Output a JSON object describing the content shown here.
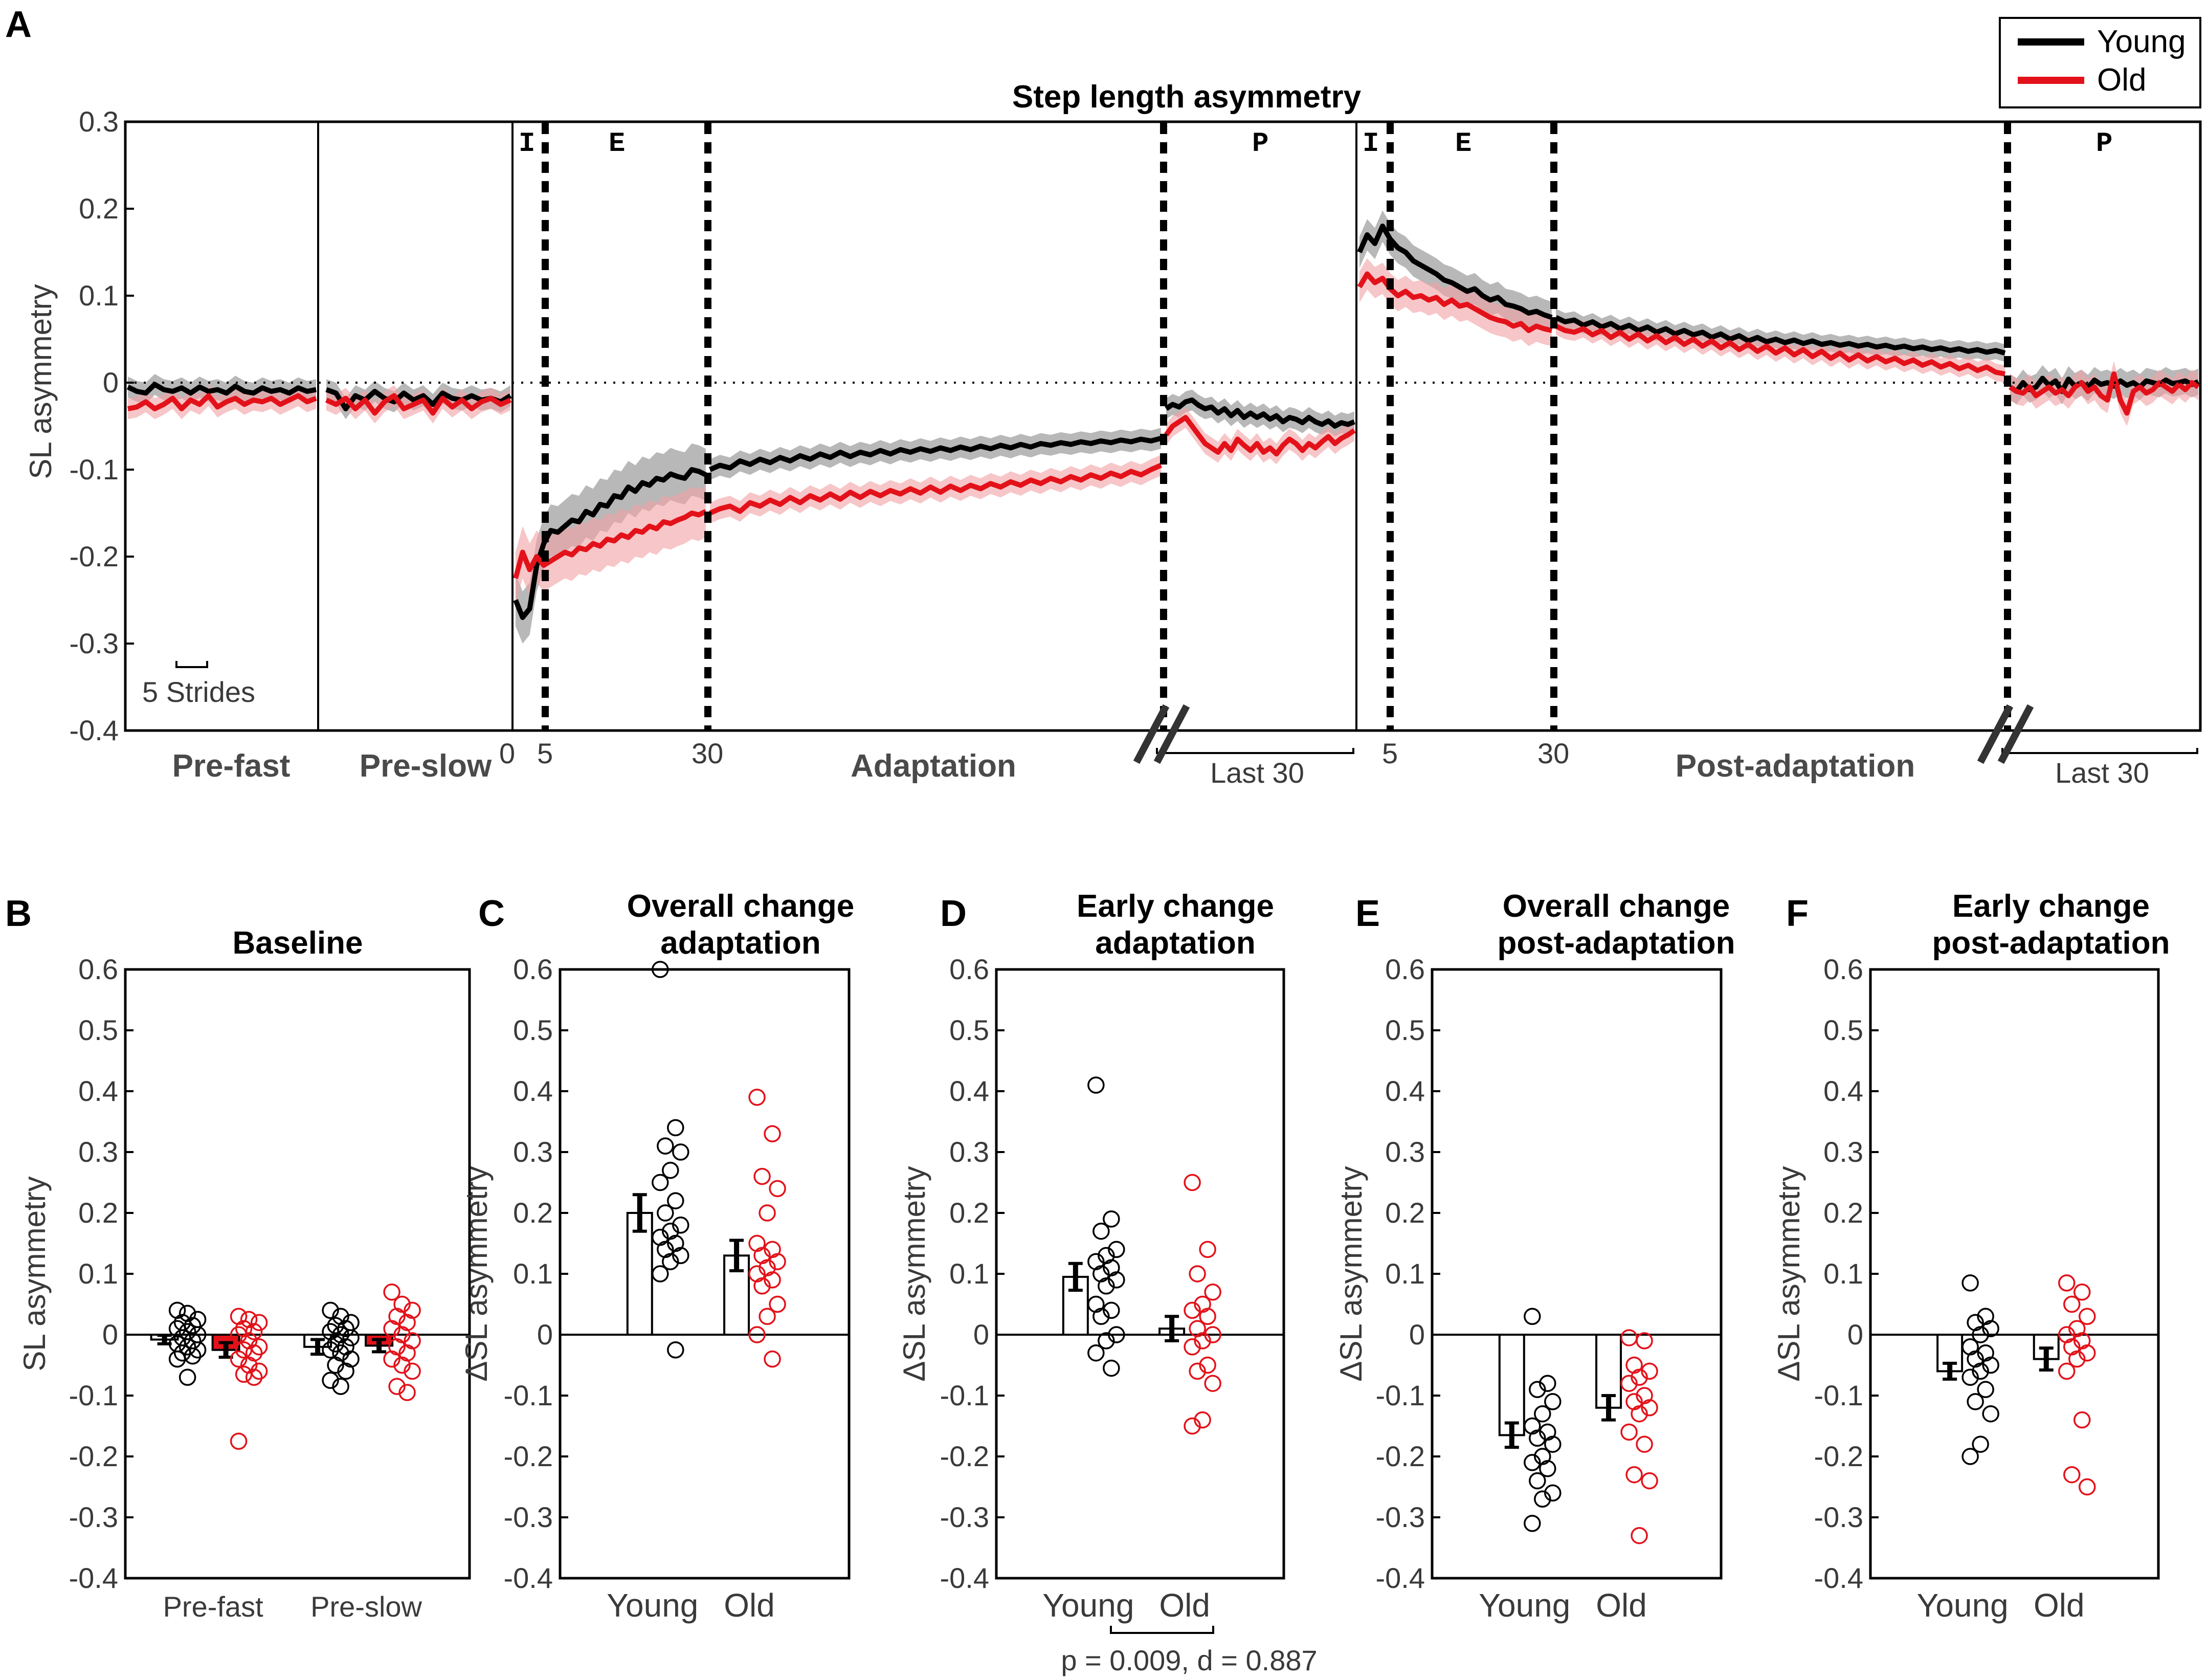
{
  "colors": {
    "young": "#000000",
    "old": "#e3121a",
    "young_band": "#9a9a9a",
    "old_band": "#f2a0a3"
  },
  "panel_letters": {
    "a": "A",
    "b": "B",
    "c": "C",
    "d": "D",
    "e": "E",
    "f": "F"
  },
  "legend": {
    "young": "Young",
    "old": "Old"
  },
  "chart_data": [
    {
      "panel": "A",
      "type": "line",
      "title": "Step length asymmetry",
      "ylabel": "SL asymmetry",
      "ylim": [
        -0.4,
        0.3
      ],
      "yticks": [
        "0.3",
        "0.2",
        "0.1",
        "0",
        "-0.1",
        "-0.2",
        "-0.3",
        "-0.4"
      ],
      "segments": [
        "Pre-fast",
        "Pre-slow",
        "Adaptation",
        "Post-adaptation"
      ],
      "phase_labels": {
        "initial": "I",
        "early": "E",
        "plateau": "P"
      },
      "xtick_labels": {
        "zero": "0",
        "five": "5",
        "thirty": "30",
        "last30": "Last 30"
      },
      "scale_bar": "5 Strides",
      "series": [
        {
          "name": "Young",
          "pre_fast": [
            -0.005,
            -0.01,
            -0.012,
            -0.002,
            -0.008,
            -0.01,
            -0.006,
            -0.012,
            -0.005,
            -0.01,
            -0.008,
            -0.012,
            -0.004,
            -0.01,
            -0.012,
            -0.006,
            -0.01,
            -0.008,
            -0.012,
            -0.006,
            -0.01,
            -0.008
          ],
          "pre_slow": [
            -0.008,
            -0.012,
            -0.03,
            -0.015,
            -0.02,
            -0.01,
            -0.018,
            -0.022,
            -0.012,
            -0.02,
            -0.015,
            -0.025,
            -0.012,
            -0.018,
            -0.02,
            -0.015,
            -0.02,
            -0.018,
            -0.022,
            -0.015
          ],
          "adaptation_early": [
            -0.25,
            -0.27,
            -0.26,
            -0.21,
            -0.185,
            -0.17,
            -0.172,
            -0.165,
            -0.158,
            -0.16,
            -0.148,
            -0.152,
            -0.14,
            -0.142,
            -0.13,
            -0.132,
            -0.12,
            -0.125,
            -0.115,
            -0.118,
            -0.11,
            -0.112,
            -0.105,
            -0.108,
            -0.11,
            -0.1,
            -0.102,
            -0.106
          ],
          "adaptation_late": [
            -0.1,
            -0.095,
            -0.098,
            -0.09,
            -0.094,
            -0.088,
            -0.092,
            -0.086,
            -0.09,
            -0.084,
            -0.088,
            -0.082,
            -0.086,
            -0.08,
            -0.085,
            -0.08,
            -0.083,
            -0.078,
            -0.082,
            -0.077,
            -0.08,
            -0.076,
            -0.079,
            -0.075,
            -0.078,
            -0.074,
            -0.077,
            -0.073,
            -0.076,
            -0.072,
            -0.075,
            -0.071,
            -0.074,
            -0.07,
            -0.072,
            -0.069,
            -0.071,
            -0.068,
            -0.07,
            -0.067,
            -0.069,
            -0.066,
            -0.068,
            -0.065,
            -0.067,
            -0.064
          ],
          "adaptation_last30": [
            -0.03,
            -0.025,
            -0.028,
            -0.022,
            -0.02,
            -0.026,
            -0.03,
            -0.028,
            -0.035,
            -0.03,
            -0.038,
            -0.032,
            -0.04,
            -0.035,
            -0.04,
            -0.036,
            -0.042,
            -0.038,
            -0.045,
            -0.04,
            -0.042,
            -0.046,
            -0.04,
            -0.045,
            -0.048,
            -0.044,
            -0.05,
            -0.046,
            -0.048,
            -0.045
          ],
          "post_early": [
            0.15,
            0.17,
            0.16,
            0.18,
            0.165,
            0.155,
            0.15,
            0.14,
            0.135,
            0.13,
            0.125,
            0.118,
            0.115,
            0.11,
            0.105,
            0.108,
            0.1,
            0.095,
            0.098,
            0.09,
            0.088,
            0.085,
            0.08,
            0.082,
            0.078,
            0.075
          ],
          "post_late": [
            0.075,
            0.07,
            0.072,
            0.066,
            0.07,
            0.064,
            0.068,
            0.062,
            0.066,
            0.06,
            0.064,
            0.058,
            0.062,
            0.056,
            0.06,
            0.055,
            0.058,
            0.052,
            0.056,
            0.05,
            0.054,
            0.048,
            0.052,
            0.047,
            0.05,
            0.046,
            0.049,
            0.045,
            0.048,
            0.044,
            0.046,
            0.043,
            0.045,
            0.042,
            0.044,
            0.041,
            0.043,
            0.04,
            0.042,
            0.039,
            0.041,
            0.038,
            0.04,
            0.037,
            0.039,
            0.036,
            0.038,
            0.035,
            0.037,
            0.034
          ],
          "post_last30": [
            -0.005,
            -0.01,
            0.0,
            -0.008,
            -0.005,
            0.005,
            -0.003,
            0.002,
            -0.01,
            0.004,
            -0.004,
            0.0,
            -0.006,
            0.003,
            -0.002,
            0.0,
            -0.004,
            0.002,
            -0.003,
            0.0,
            -0.005,
            0.002,
            0.0,
            -0.002,
            0.003,
            -0.001,
            0.0,
            0.002,
            -0.002,
            0.001
          ]
        },
        {
          "name": "Old",
          "pre_fast": [
            -0.03,
            -0.028,
            -0.022,
            -0.03,
            -0.025,
            -0.018,
            -0.03,
            -0.02,
            -0.025,
            -0.015,
            -0.028,
            -0.022,
            -0.018,
            -0.025,
            -0.02,
            -0.022,
            -0.018,
            -0.025,
            -0.02,
            -0.015,
            -0.022,
            -0.018
          ],
          "pre_slow": [
            -0.02,
            -0.025,
            -0.018,
            -0.03,
            -0.02,
            -0.035,
            -0.022,
            -0.015,
            -0.03,
            -0.025,
            -0.02,
            -0.035,
            -0.018,
            -0.028,
            -0.02,
            -0.03,
            -0.022,
            -0.018,
            -0.025,
            -0.02
          ],
          "adaptation_early": [
            -0.225,
            -0.195,
            -0.215,
            -0.2,
            -0.21,
            -0.205,
            -0.2,
            -0.195,
            -0.198,
            -0.19,
            -0.192,
            -0.185,
            -0.188,
            -0.18,
            -0.182,
            -0.175,
            -0.178,
            -0.17,
            -0.172,
            -0.165,
            -0.168,
            -0.16,
            -0.162,
            -0.158,
            -0.155,
            -0.15,
            -0.152,
            -0.148
          ],
          "adaptation_late": [
            -0.15,
            -0.145,
            -0.142,
            -0.148,
            -0.138,
            -0.142,
            -0.135,
            -0.14,
            -0.132,
            -0.138,
            -0.13,
            -0.135,
            -0.128,
            -0.134,
            -0.126,
            -0.132,
            -0.125,
            -0.13,
            -0.124,
            -0.128,
            -0.122,
            -0.127,
            -0.12,
            -0.126,
            -0.119,
            -0.124,
            -0.118,
            -0.122,
            -0.116,
            -0.12,
            -0.114,
            -0.118,
            -0.112,
            -0.116,
            -0.11,
            -0.114,
            -0.108,
            -0.112,
            -0.106,
            -0.11,
            -0.104,
            -0.108,
            -0.102,
            -0.106,
            -0.1,
            -0.095
          ],
          "adaptation_last30": [
            -0.06,
            -0.05,
            -0.045,
            -0.04,
            -0.05,
            -0.06,
            -0.07,
            -0.075,
            -0.08,
            -0.07,
            -0.078,
            -0.065,
            -0.072,
            -0.078,
            -0.07,
            -0.08,
            -0.075,
            -0.082,
            -0.072,
            -0.065,
            -0.07,
            -0.078,
            -0.07,
            -0.075,
            -0.068,
            -0.062,
            -0.07,
            -0.064,
            -0.06,
            -0.055
          ],
          "post_early": [
            0.11,
            0.125,
            0.115,
            0.12,
            0.108,
            0.1,
            0.105,
            0.098,
            0.1,
            0.095,
            0.098,
            0.09,
            0.095,
            0.088,
            0.09,
            0.085,
            0.08,
            0.075,
            0.072,
            0.07,
            0.065,
            0.068,
            0.06,
            0.065,
            0.062,
            0.06
          ],
          "post_late": [
            0.065,
            0.06,
            0.058,
            0.062,
            0.055,
            0.06,
            0.052,
            0.058,
            0.05,
            0.056,
            0.048,
            0.054,
            0.046,
            0.052,
            0.044,
            0.05,
            0.042,
            0.048,
            0.04,
            0.046,
            0.038,
            0.044,
            0.036,
            0.042,
            0.034,
            0.04,
            0.032,
            0.038,
            0.03,
            0.036,
            0.028,
            0.034,
            0.026,
            0.032,
            0.025,
            0.03,
            0.024,
            0.028,
            0.022,
            0.026,
            0.02,
            0.024,
            0.018,
            0.022,
            0.016,
            0.02,
            0.014,
            0.018,
            0.012,
            0.01
          ],
          "post_last30": [
            -0.005,
            -0.01,
            -0.012,
            -0.005,
            -0.015,
            -0.01,
            -0.005,
            -0.012,
            -0.008,
            -0.015,
            -0.005,
            0.0,
            -0.01,
            -0.005,
            -0.015,
            -0.02,
            0.01,
            -0.02,
            -0.035,
            -0.01,
            -0.005,
            -0.012,
            -0.008,
            0.0,
            -0.005,
            -0.01,
            -0.002,
            -0.008,
            0.0,
            -0.005
          ]
        }
      ]
    },
    {
      "panel": "B",
      "type": "bar",
      "title_lines": [
        "Baseline"
      ],
      "ylabel": "SL asymmetry",
      "ylim": [
        -0.4,
        0.6
      ],
      "yticks": [
        "0.6",
        "0.5",
        "0.4",
        "0.3",
        "0.2",
        "0.1",
        "0",
        "-0.1",
        "-0.2",
        "-0.3",
        "-0.4"
      ],
      "categories": [
        "Pre-fast",
        "Pre-slow"
      ],
      "series": [
        {
          "name": "Young",
          "means": [
            -0.008,
            -0.02
          ],
          "sem": [
            0.007,
            0.012
          ],
          "points": [
            [
              0.04,
              0.035,
              0.025,
              0.02,
              0.015,
              0.01,
              0.005,
              0.0,
              -0.005,
              -0.01,
              -0.015,
              -0.02,
              -0.025,
              -0.03,
              -0.035,
              -0.04,
              -0.07
            ],
            [
              0.04,
              0.03,
              0.02,
              0.015,
              0.01,
              0.005,
              0.0,
              -0.005,
              -0.015,
              -0.02,
              -0.025,
              -0.03,
              -0.04,
              -0.05,
              -0.06,
              -0.075,
              -0.085
            ]
          ]
        },
        {
          "name": "Old",
          "means": [
            -0.025,
            -0.018
          ],
          "sem": [
            0.012,
            0.01
          ],
          "points": [
            [
              0.03,
              0.025,
              0.02,
              0.01,
              0.005,
              0.0,
              -0.01,
              -0.02,
              -0.025,
              -0.03,
              -0.04,
              -0.05,
              -0.06,
              -0.065,
              -0.07,
              -0.175
            ],
            [
              0.07,
              0.05,
              0.04,
              0.03,
              0.02,
              0.01,
              0.0,
              -0.01,
              -0.02,
              -0.03,
              -0.04,
              -0.05,
              -0.06,
              -0.085,
              -0.095
            ]
          ]
        }
      ]
    },
    {
      "panel": "C",
      "type": "bar",
      "title_lines": [
        "Overall change",
        "adaptation"
      ],
      "ylabel": "ΔSL asymmetry",
      "ylim": [
        -0.4,
        0.6
      ],
      "yticks": [
        "0.6",
        "0.5",
        "0.4",
        "0.3",
        "0.2",
        "0.1",
        "0",
        "-0.1",
        "-0.2",
        "-0.3",
        "-0.4"
      ],
      "categories": [
        "Young",
        "Old"
      ],
      "means": [
        0.2,
        0.13
      ],
      "sem": [
        0.03,
        0.025
      ],
      "points": [
        [
          0.6,
          0.34,
          0.31,
          0.3,
          0.27,
          0.25,
          0.22,
          0.2,
          0.18,
          0.17,
          0.16,
          0.15,
          0.14,
          0.13,
          0.12,
          0.1,
          -0.025
        ],
        [
          0.39,
          0.33,
          0.26,
          0.24,
          0.2,
          0.15,
          0.14,
          0.13,
          0.12,
          0.11,
          0.1,
          0.09,
          0.08,
          0.05,
          0.03,
          0.0,
          -0.04
        ]
      ]
    },
    {
      "panel": "D",
      "type": "bar",
      "title_lines": [
        "Early change",
        "adaptation"
      ],
      "ylabel": "ΔSL asymmetry",
      "ylim": [
        -0.4,
        0.6
      ],
      "yticks": [
        "0.6",
        "0.5",
        "0.4",
        "0.3",
        "0.2",
        "0.1",
        "0",
        "-0.1",
        "-0.2",
        "-0.3",
        "-0.4"
      ],
      "categories": [
        "Young",
        "Old"
      ],
      "means": [
        0.095,
        0.01
      ],
      "sem": [
        0.022,
        0.02
      ],
      "points": [
        [
          0.41,
          0.19,
          0.17,
          0.14,
          0.13,
          0.12,
          0.11,
          0.1,
          0.09,
          0.08,
          0.05,
          0.04,
          0.03,
          0.0,
          -0.01,
          -0.03,
          -0.055
        ],
        [
          0.25,
          0.14,
          0.1,
          0.07,
          0.05,
          0.04,
          0.03,
          0.01,
          0.0,
          -0.01,
          -0.02,
          -0.05,
          -0.06,
          -0.08,
          -0.14,
          -0.15
        ]
      ],
      "annotation": "p = 0.009, d = 0.887"
    },
    {
      "panel": "E",
      "type": "bar",
      "title_lines": [
        "Overall change",
        "post-adaptation"
      ],
      "ylabel": "ΔSL asymmetry",
      "ylim": [
        -0.4,
        0.6
      ],
      "yticks": [
        "0.6",
        "0.5",
        "0.4",
        "0.3",
        "0.2",
        "0.1",
        "0",
        "-0.1",
        "-0.2",
        "-0.3",
        "-0.4"
      ],
      "categories": [
        "Young",
        "Old"
      ],
      "means": [
        -0.165,
        -0.12
      ],
      "sem": [
        0.02,
        0.02
      ],
      "points": [
        [
          0.03,
          -0.08,
          -0.09,
          -0.11,
          -0.13,
          -0.15,
          -0.16,
          -0.17,
          -0.18,
          -0.2,
          -0.21,
          -0.22,
          -0.24,
          -0.26,
          -0.27,
          -0.31
        ],
        [
          -0.005,
          -0.01,
          -0.05,
          -0.06,
          -0.07,
          -0.08,
          -0.1,
          -0.11,
          -0.12,
          -0.13,
          -0.16,
          -0.18,
          -0.23,
          -0.24,
          -0.33
        ]
      ]
    },
    {
      "panel": "F",
      "type": "bar",
      "title_lines": [
        "Early change",
        "post-adaptation"
      ],
      "ylabel": "ΔSL asymmetry",
      "ylim": [
        -0.4,
        0.6
      ],
      "yticks": [
        "0.6",
        "0.5",
        "0.4",
        "0.3",
        "0.2",
        "0.1",
        "0",
        "-0.1",
        "-0.2",
        "-0.3",
        "-0.4"
      ],
      "categories": [
        "Young",
        "Old"
      ],
      "means": [
        -0.06,
        -0.04
      ],
      "sem": [
        0.013,
        0.018
      ],
      "points": [
        [
          0.085,
          0.03,
          0.02,
          0.01,
          0.0,
          -0.02,
          -0.03,
          -0.04,
          -0.05,
          -0.06,
          -0.07,
          -0.09,
          -0.11,
          -0.13,
          -0.18,
          -0.2
        ],
        [
          0.085,
          0.07,
          0.05,
          0.03,
          0.01,
          0.0,
          -0.01,
          -0.02,
          -0.03,
          -0.04,
          -0.06,
          -0.14,
          -0.23,
          -0.25
        ]
      ]
    }
  ]
}
